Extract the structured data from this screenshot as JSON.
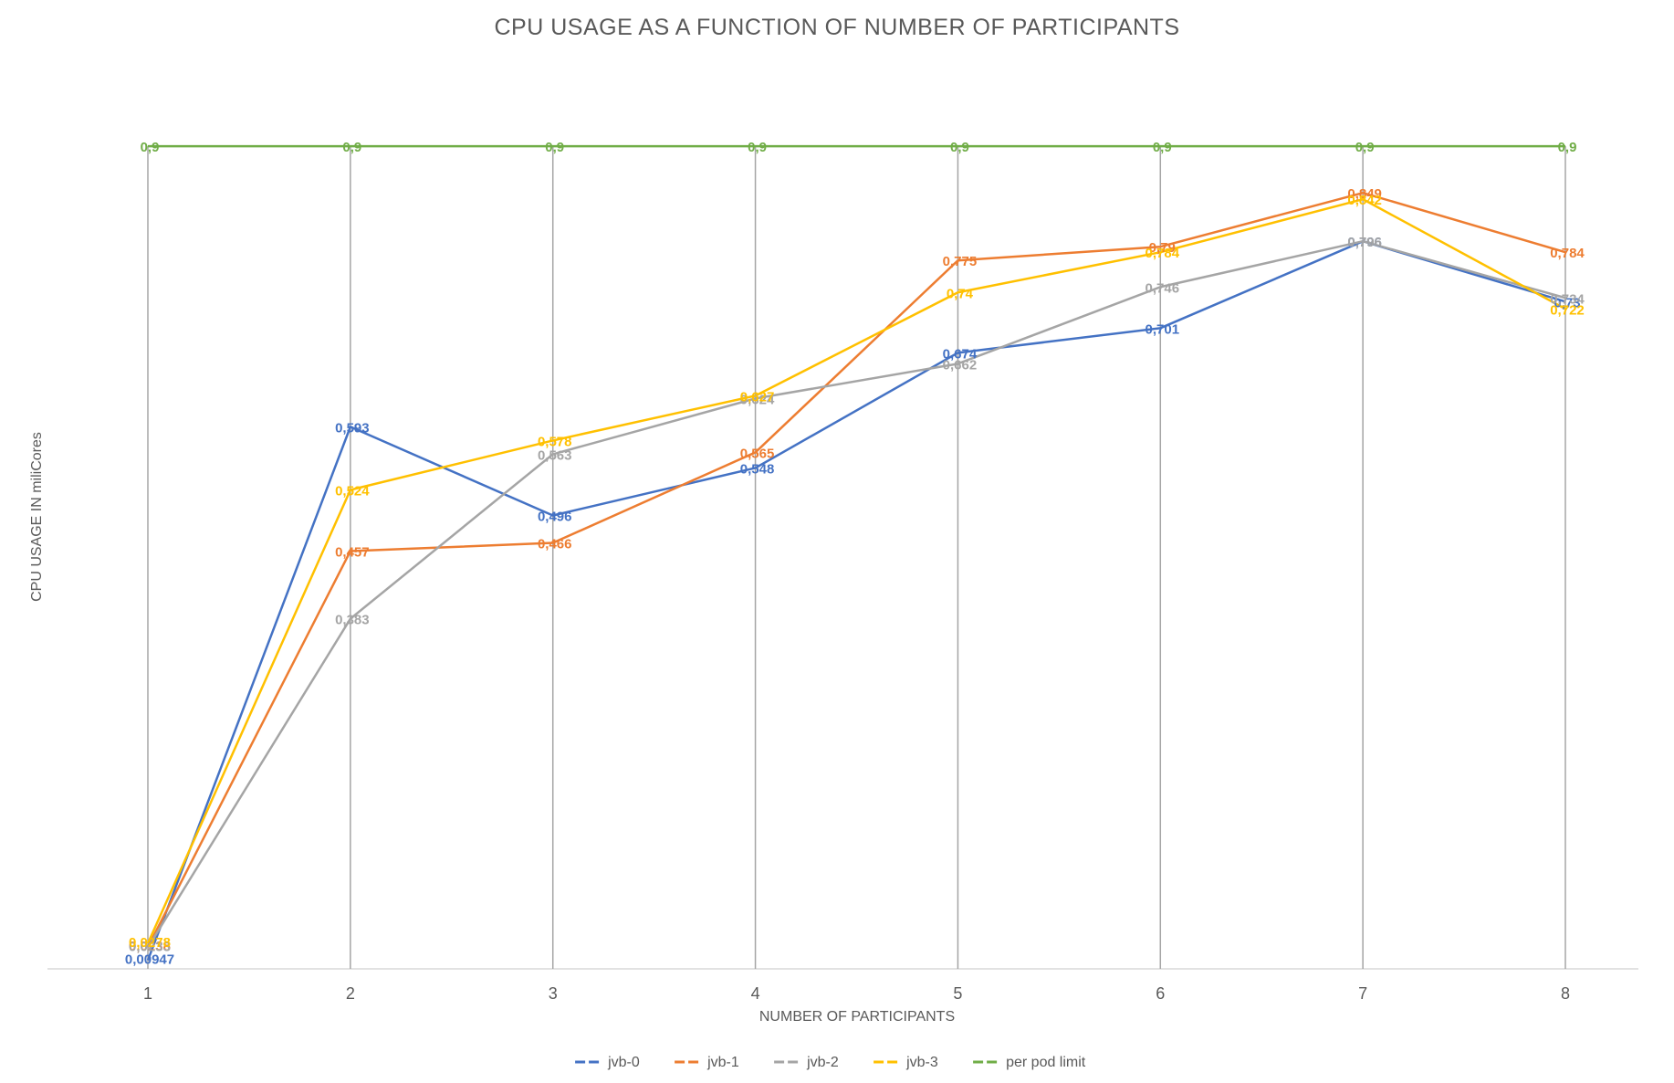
{
  "chart_data": {
    "type": "line",
    "title": "CPU USAGE AS A FUNCTION OF NUMBER OF PARTICIPANTS",
    "xlabel": "NUMBER OF PARTICIPANTS",
    "ylabel": "CPU USAGE IN miliCores",
    "categories": [
      "1",
      "2",
      "3",
      "4",
      "5",
      "6",
      "7",
      "8"
    ],
    "ylim": [
      0,
      1
    ],
    "grid": false,
    "legend_position": "bottom",
    "series": [
      {
        "name": "jvb-0",
        "color": "#4472C4",
        "values": [
          0.00947,
          0.593,
          0.496,
          0.548,
          0.674,
          0.701,
          0.796,
          0.73
        ],
        "labels": [
          "0,00947",
          "0,593",
          "0,496",
          "0,548",
          "0,674",
          "0,701",
          "0,796",
          "0,73"
        ]
      },
      {
        "name": "jvb-1",
        "color": "#ED7D31",
        "values": [
          0.0238,
          0.457,
          0.466,
          0.565,
          0.775,
          0.79,
          0.849,
          0.784
        ],
        "labels": [
          "0,0238",
          "0,457",
          "0,466",
          "0,565",
          "0,775",
          "0,79",
          "0,849",
          "0,784"
        ]
      },
      {
        "name": "jvb-2",
        "color": "#A5A5A5",
        "values": [
          0.0233,
          0.383,
          0.563,
          0.624,
          0.662,
          0.746,
          0.796,
          0.734
        ],
        "labels": [
          "0,0233",
          "0,383",
          "0,563",
          "0,624",
          "0,662",
          "0,746",
          "0,796",
          "0,734"
        ]
      },
      {
        "name": "jvb-3",
        "color": "#FFC000",
        "values": [
          0.0278,
          0.524,
          0.578,
          0.627,
          0.74,
          0.784,
          0.842,
          0.722
        ],
        "labels": [
          "0,0278",
          "0,524",
          "0,578",
          "0,627",
          "0,74",
          "0,784",
          "0,842",
          "0,722"
        ]
      },
      {
        "name": "per pod limit",
        "color": "#70AD47",
        "values": [
          0.9,
          0.9,
          0.9,
          0.9,
          0.9,
          0.9,
          0.9,
          0.9
        ],
        "labels": [
          "0,9",
          "0,9",
          "0,9",
          "0,9",
          "0,9",
          "0,9",
          "0,9",
          "0,9"
        ]
      }
    ],
    "drop_line_color": "#A5A5A5"
  }
}
